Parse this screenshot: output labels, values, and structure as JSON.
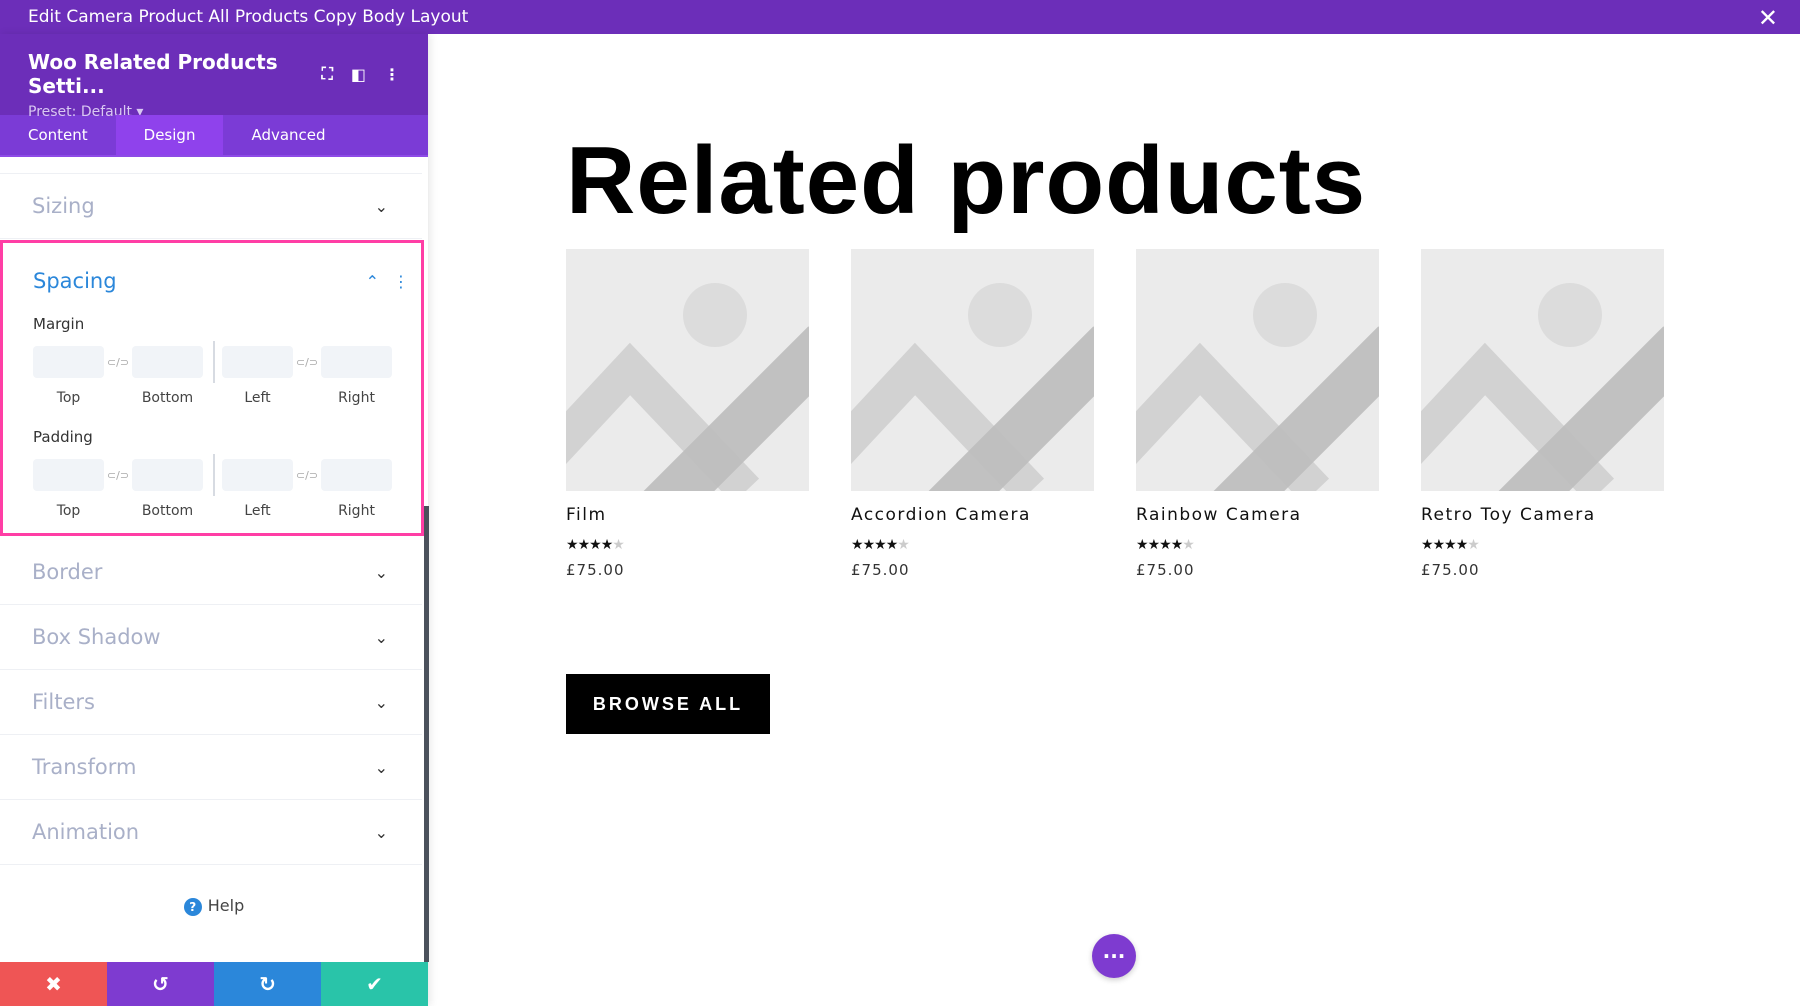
{
  "window": {
    "title": "Edit Camera Product All Products Copy Body Layout",
    "close_icon": "close-icon"
  },
  "panel": {
    "title": "Woo Related Products Setti...",
    "preset": "Preset: Default ▾",
    "tabs": [
      "Content",
      "Design",
      "Advanced"
    ],
    "active_tab": "Design",
    "sections_before": [
      "Sizing"
    ],
    "spacing": {
      "title": "Spacing",
      "margin_label": "Margin",
      "padding_label": "Padding",
      "fields": [
        "Top",
        "Bottom",
        "Left",
        "Right"
      ]
    },
    "sections_after": [
      "Border",
      "Box Shadow",
      "Filters",
      "Transform",
      "Animation"
    ],
    "help": "Help",
    "actions": [
      {
        "name": "cancel",
        "color": "#ef5555"
      },
      {
        "name": "undo",
        "color": "#7e3bd0"
      },
      {
        "name": "redo",
        "color": "#2b87da"
      },
      {
        "name": "save",
        "color": "#29c4a9"
      }
    ]
  },
  "page": {
    "heading": "Related products",
    "products": [
      {
        "name": "Film",
        "rating": 4,
        "price": "£75.00"
      },
      {
        "name": "Accordion Camera",
        "rating": 4,
        "price": "£75.00"
      },
      {
        "name": "Rainbow Camera",
        "rating": 4,
        "price": "£75.00"
      },
      {
        "name": "Retro Toy Camera",
        "rating": 4,
        "price": "£75.00"
      }
    ],
    "browse_label": "BROWSE ALL"
  },
  "colors": {
    "accent": "#6c2eb9",
    "highlight": "#ff3ea5",
    "link": "#2b87da"
  }
}
